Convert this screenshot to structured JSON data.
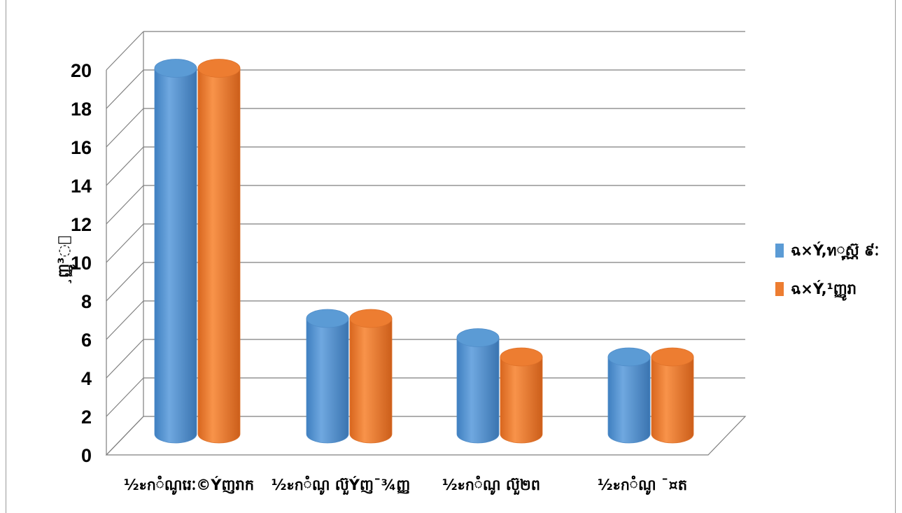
{
  "chart_data": {
    "type": "bar",
    "style": "3d-cylinder",
    "categories": [
      "½ะกំណូរេៈ©Ýញរាក",
      "½ะกំណូ ល៊ួÝញ¯¾ញ្ញ",
      "½ะกំណូ ល៊ួ២ព",
      "½ะกំណូ ¯¤ត"
    ],
    "series": [
      {
        "name": "ฉ×Ý,ทុស្ណ៊ ៩ៈ",
        "color": "#5b9bd5",
        "values": [
          19,
          6,
          5,
          4
        ]
      },
      {
        "name": "ฉ×Ý,¹ញ្ញូរា",
        "color": "#ed7d31",
        "values": [
          19,
          6,
          4,
          4
        ]
      }
    ],
    "ylabel": "¸ញ្ញូ³ៈ",
    "ylim": [
      0,
      20
    ],
    "yticks": [
      0,
      2,
      4,
      6,
      8,
      10,
      12,
      14,
      16,
      18,
      20
    ],
    "grid": true,
    "legend": "right"
  }
}
